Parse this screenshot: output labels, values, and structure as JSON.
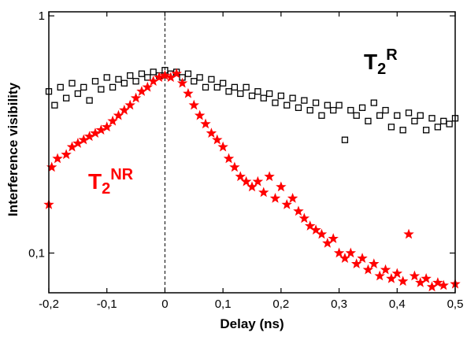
{
  "chart_data": {
    "type": "scatter",
    "x_label": "Delay (ns)",
    "y_label": "Interference visibility",
    "xlim": [
      -0.2,
      0.5
    ],
    "ylim": [
      0.068,
      1.04
    ],
    "log_y": true,
    "xticks": [
      {
        "value": -0.2,
        "label": "-0,2"
      },
      {
        "value": -0.1,
        "label": "-0,1"
      },
      0,
      {
        "value": 0.1,
        "label": "0,1"
      },
      {
        "value": 0.2,
        "label": "0,2"
      },
      {
        "value": 0.3,
        "label": "0,3"
      },
      {
        "value": 0.4,
        "label": "0,4"
      },
      {
        "value": 0.5,
        "label": "0,5"
      }
    ],
    "yticks": [
      {
        "value": 0.1,
        "label": "0,1"
      },
      1
    ],
    "series": [
      {
        "color": "#000000",
        "marker": "square-open",
        "x": [
          -0.2,
          -0.19,
          -0.18,
          -0.17,
          -0.16,
          -0.15,
          -0.14,
          -0.13,
          -0.12,
          -0.11,
          -0.1,
          -0.09,
          -0.08,
          -0.07,
          -0.06,
          -0.05,
          -0.04,
          -0.03,
          -0.02,
          -0.01,
          0,
          0.01,
          0.02,
          0.03,
          0.04,
          0.05,
          0.06,
          0.07,
          0.08,
          0.09,
          0.1,
          0.11,
          0.12,
          0.13,
          0.14,
          0.15,
          0.16,
          0.17,
          0.18,
          0.19,
          0.2,
          0.21,
          0.22,
          0.23,
          0.24,
          0.25,
          0.26,
          0.27,
          0.28,
          0.29,
          0.3,
          0.31,
          0.32,
          0.33,
          0.34,
          0.35,
          0.36,
          0.37,
          0.38,
          0.39,
          0.4,
          0.41,
          0.42,
          0.43,
          0.44,
          0.45,
          0.46,
          0.47,
          0.48,
          0.49,
          0.5
        ],
        "values": [
          0.48,
          0.42,
          0.5,
          0.45,
          0.52,
          0.47,
          0.5,
          0.44,
          0.53,
          0.49,
          0.55,
          0.5,
          0.54,
          0.52,
          0.56,
          0.53,
          0.57,
          0.55,
          0.58,
          0.56,
          0.59,
          0.57,
          0.58,
          0.55,
          0.57,
          0.53,
          0.55,
          0.5,
          0.54,
          0.5,
          0.52,
          0.48,
          0.5,
          0.47,
          0.5,
          0.46,
          0.48,
          0.45,
          0.47,
          0.43,
          0.46,
          0.42,
          0.45,
          0.41,
          0.44,
          0.4,
          0.43,
          0.38,
          0.42,
          0.4,
          0.42,
          0.3,
          0.4,
          0.38,
          0.41,
          0.36,
          0.43,
          0.38,
          0.4,
          0.34,
          0.38,
          0.33,
          0.39,
          0.36,
          0.38,
          0.33,
          0.37,
          0.34,
          0.36,
          0.35,
          0.37
        ]
      },
      {
        "color": "#ff0000",
        "marker": "star",
        "x": [
          -0.2,
          -0.195,
          -0.185,
          -0.17,
          -0.16,
          -0.15,
          -0.14,
          -0.13,
          -0.12,
          -0.11,
          -0.1,
          -0.09,
          -0.08,
          -0.07,
          -0.06,
          -0.05,
          -0.04,
          -0.03,
          -0.02,
          -0.01,
          0,
          0.01,
          0.02,
          0.03,
          0.04,
          0.05,
          0.06,
          0.07,
          0.08,
          0.09,
          0.1,
          0.11,
          0.12,
          0.13,
          0.14,
          0.15,
          0.16,
          0.17,
          0.18,
          0.19,
          0.2,
          0.21,
          0.22,
          0.23,
          0.24,
          0.25,
          0.26,
          0.27,
          0.28,
          0.29,
          0.3,
          0.31,
          0.32,
          0.33,
          0.34,
          0.35,
          0.36,
          0.37,
          0.38,
          0.39,
          0.4,
          0.41,
          0.42,
          0.43,
          0.44,
          0.45,
          0.46,
          0.47,
          0.48,
          0.5
        ],
        "values": [
          0.16,
          0.23,
          0.25,
          0.26,
          0.28,
          0.29,
          0.3,
          0.31,
          0.32,
          0.33,
          0.34,
          0.36,
          0.38,
          0.4,
          0.42,
          0.45,
          0.48,
          0.5,
          0.53,
          0.55,
          0.56,
          0.55,
          0.57,
          0.52,
          0.47,
          0.42,
          0.38,
          0.35,
          0.32,
          0.3,
          0.28,
          0.25,
          0.23,
          0.21,
          0.2,
          0.19,
          0.2,
          0.18,
          0.21,
          0.17,
          0.19,
          0.16,
          0.17,
          0.15,
          0.14,
          0.13,
          0.125,
          0.12,
          0.11,
          0.115,
          0.1,
          0.095,
          0.1,
          0.09,
          0.095,
          0.085,
          0.09,
          0.08,
          0.085,
          0.078,
          0.082,
          0.076,
          0.12,
          0.08,
          0.075,
          0.078,
          0.072,
          0.075,
          0.073,
          0.074
        ]
      }
    ],
    "annotations": [
      {
        "text": "T",
        "sub": "2",
        "sup": "R",
        "color": "#000000"
      },
      {
        "text": "T",
        "sub": "2",
        "sup": "NR",
        "color": "#ff0000"
      }
    ]
  }
}
